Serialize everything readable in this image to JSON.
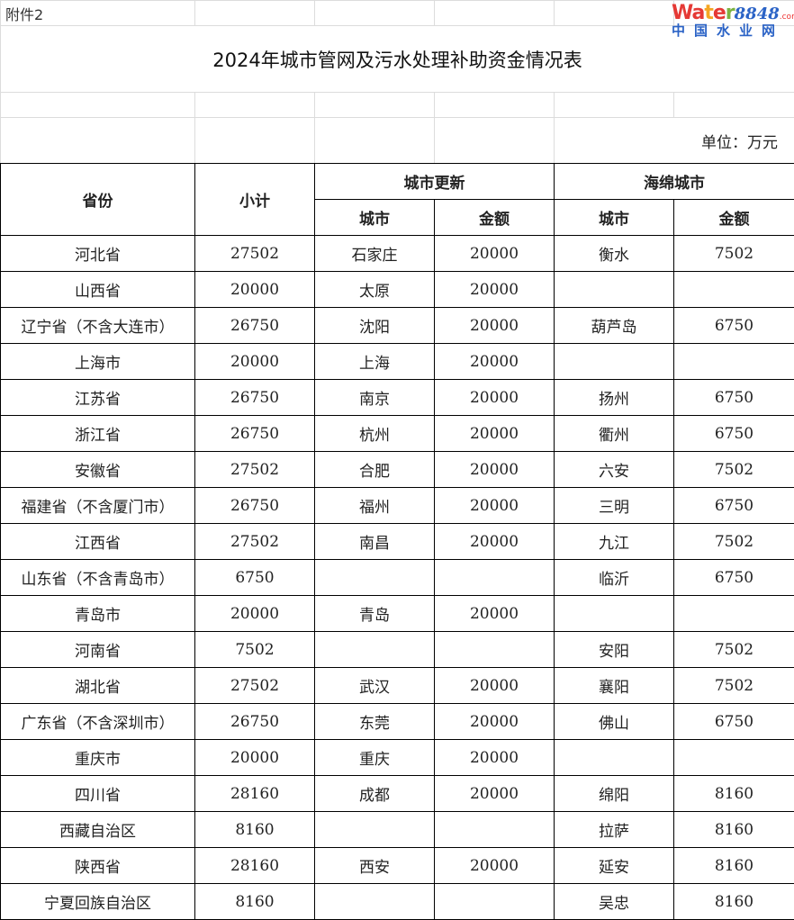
{
  "attachment_label": "附件2",
  "title": "2024年城市管网及污水处理补助资金情况表",
  "unit": "单位：万元",
  "headers": {
    "province": "省份",
    "subtotal": "小计",
    "urban_renewal": "城市更新",
    "sponge_city": "海绵城市",
    "city": "城市",
    "amount": "金额"
  },
  "rows": [
    {
      "province": "河北省",
      "subtotal": "27502",
      "ur_city": "石家庄",
      "ur_amount": "20000",
      "sc_city": "衡水",
      "sc_amount": "7502"
    },
    {
      "province": "山西省",
      "subtotal": "20000",
      "ur_city": "太原",
      "ur_amount": "20000",
      "sc_city": "",
      "sc_amount": ""
    },
    {
      "province": "辽宁省（不含大连市）",
      "subtotal": "26750",
      "ur_city": "沈阳",
      "ur_amount": "20000",
      "sc_city": "葫芦岛",
      "sc_amount": "6750"
    },
    {
      "province": "上海市",
      "subtotal": "20000",
      "ur_city": "上海",
      "ur_amount": "20000",
      "sc_city": "",
      "sc_amount": ""
    },
    {
      "province": "江苏省",
      "subtotal": "26750",
      "ur_city": "南京",
      "ur_amount": "20000",
      "sc_city": "扬州",
      "sc_amount": "6750"
    },
    {
      "province": "浙江省",
      "subtotal": "26750",
      "ur_city": "杭州",
      "ur_amount": "20000",
      "sc_city": "衢州",
      "sc_amount": "6750"
    },
    {
      "province": "安徽省",
      "subtotal": "27502",
      "ur_city": "合肥",
      "ur_amount": "20000",
      "sc_city": "六安",
      "sc_amount": "7502"
    },
    {
      "province": "福建省（不含厦门市）",
      "subtotal": "26750",
      "ur_city": "福州",
      "ur_amount": "20000",
      "sc_city": "三明",
      "sc_amount": "6750"
    },
    {
      "province": "江西省",
      "subtotal": "27502",
      "ur_city": "南昌",
      "ur_amount": "20000",
      "sc_city": "九江",
      "sc_amount": "7502"
    },
    {
      "province": "山东省（不含青岛市）",
      "subtotal": "6750",
      "ur_city": "",
      "ur_amount": "",
      "sc_city": "临沂",
      "sc_amount": "6750"
    },
    {
      "province": "青岛市",
      "subtotal": "20000",
      "ur_city": "青岛",
      "ur_amount": "20000",
      "sc_city": "",
      "sc_amount": ""
    },
    {
      "province": "河南省",
      "subtotal": "7502",
      "ur_city": "",
      "ur_amount": "",
      "sc_city": "安阳",
      "sc_amount": "7502"
    },
    {
      "province": "湖北省",
      "subtotal": "27502",
      "ur_city": "武汉",
      "ur_amount": "20000",
      "sc_city": "襄阳",
      "sc_amount": "7502"
    },
    {
      "province": "广东省（不含深圳市）",
      "subtotal": "26750",
      "ur_city": "东莞",
      "ur_amount": "20000",
      "sc_city": "佛山",
      "sc_amount": "6750"
    },
    {
      "province": "重庆市",
      "subtotal": "20000",
      "ur_city": "重庆",
      "ur_amount": "20000",
      "sc_city": "",
      "sc_amount": ""
    },
    {
      "province": "四川省",
      "subtotal": "28160",
      "ur_city": "成都",
      "ur_amount": "20000",
      "sc_city": "绵阳",
      "sc_amount": "8160"
    },
    {
      "province": "西藏自治区",
      "subtotal": "8160",
      "ur_city": "",
      "ur_amount": "",
      "sc_city": "拉萨",
      "sc_amount": "8160"
    },
    {
      "province": "陕西省",
      "subtotal": "28160",
      "ur_city": "西安",
      "ur_amount": "20000",
      "sc_city": "延安",
      "sc_amount": "8160"
    },
    {
      "province": "宁夏回族自治区",
      "subtotal": "8160",
      "ur_city": "",
      "ur_amount": "",
      "sc_city": "吴忠",
      "sc_amount": "8160"
    }
  ],
  "watermark": {
    "brand": "Water8848",
    "suffix": ".com",
    "cn": "中国水业网"
  }
}
